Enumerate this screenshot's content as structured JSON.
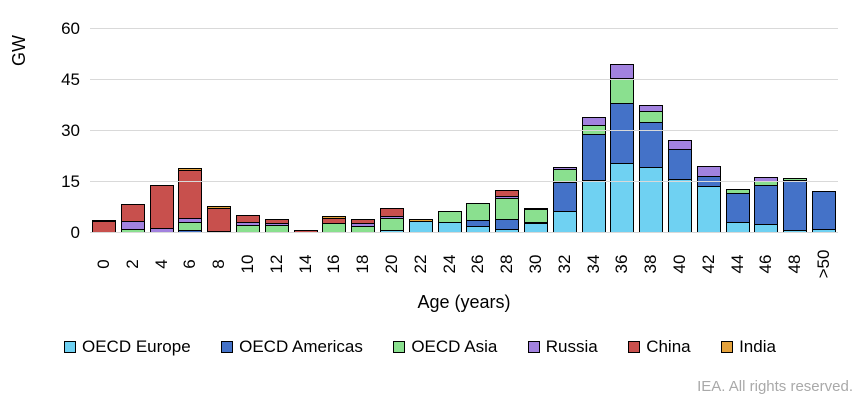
{
  "chart_data": {
    "type": "bar",
    "stacked": true,
    "title": "",
    "ylabel": "GW",
    "xlabel": "Age (years)",
    "ylim": [
      0,
      60
    ],
    "yticks": [
      0,
      15,
      30,
      45,
      60
    ],
    "grid": true,
    "legend_position": "bottom",
    "categories": [
      "0",
      "2",
      "4",
      "6",
      "8",
      "10",
      "12",
      "14",
      "16",
      "18",
      "20",
      "22",
      "24",
      "26",
      "28",
      "30",
      "32",
      "34",
      "36",
      "38",
      "40",
      "42",
      "44",
      "46",
      "48",
      ">50"
    ],
    "series": [
      {
        "name": "OECD Europe",
        "color": "#6FD1F2",
        "values": [
          0,
          0,
          0,
          0,
          0,
          0,
          0,
          0,
          0,
          0,
          1,
          3.5,
          3.1,
          2,
          1.2,
          2.8,
          6.4,
          15.5,
          20.5,
          19.5,
          15.8,
          13.8,
          3.1,
          2.6,
          0.8,
          1.2
        ]
      },
      {
        "name": "OECD Americas",
        "color": "#4472C8",
        "values": [
          0,
          0,
          0,
          1,
          0,
          0,
          0,
          0,
          0,
          0,
          0,
          0,
          0,
          2,
          3.3,
          0.6,
          8.9,
          13.8,
          17.8,
          13.5,
          9.2,
          3.1,
          8.7,
          11.8,
          15,
          11.6
        ]
      },
      {
        "name": "OECD Asia",
        "color": "#8AE08F",
        "values": [
          0,
          1.2,
          0,
          2.5,
          0,
          2.4,
          2.3,
          0,
          2.8,
          2,
          3.8,
          0,
          3.6,
          5.2,
          6.5,
          4,
          4.2,
          2.9,
          7.5,
          3.5,
          0,
          0,
          1.5,
          1.5,
          0.8,
          0
        ]
      },
      {
        "name": "Russia",
        "color": "#A282DF",
        "values": [
          0,
          2.6,
          1.6,
          1.6,
          0.6,
          1.3,
          0.9,
          0,
          0,
          1.2,
          0.8,
          0,
          0,
          0,
          1,
          0,
          0.9,
          2.6,
          4.5,
          2.2,
          3,
          3.1,
          0,
          1.6,
          0,
          0
        ]
      },
      {
        "name": "China",
        "color": "#C8504D",
        "values": [
          3.6,
          5.2,
          12.9,
          14.4,
          7.1,
          2.3,
          1.6,
          1,
          1.8,
          1.6,
          2.7,
          0,
          0,
          0,
          2,
          0.6,
          0,
          0,
          0,
          0,
          0,
          0,
          0,
          0,
          0,
          0
        ]
      },
      {
        "name": "India",
        "color": "#E4A23C",
        "values": [
          0.4,
          0,
          0,
          1,
          0.9,
          0,
          0,
          0,
          1,
          0,
          0,
          1,
          0,
          0,
          0,
          0,
          0,
          0,
          0,
          0,
          0,
          0,
          0,
          0,
          0,
          0
        ]
      }
    ]
  },
  "footer": {
    "credit": "IEA. All rights reserved."
  }
}
